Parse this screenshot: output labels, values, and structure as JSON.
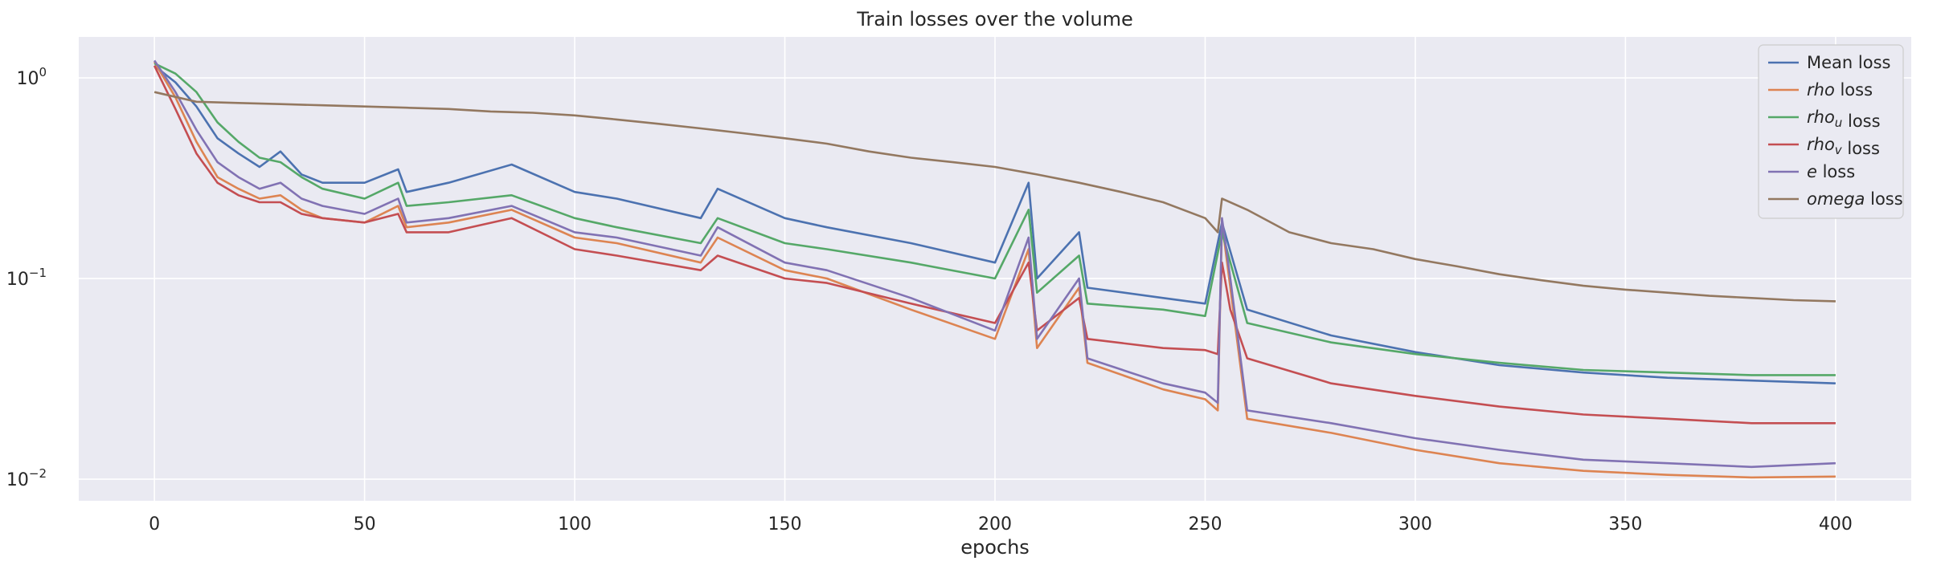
{
  "chart_data": {
    "type": "line",
    "title": "Train losses over the volume",
    "xlabel": "epochs",
    "ylabel": "",
    "yscale": "log",
    "xlim": [
      -18,
      418
    ],
    "ylim": [
      0.0078,
      1.6
    ],
    "x_ticks": [
      0,
      50,
      100,
      150,
      200,
      250,
      300,
      350,
      400
    ],
    "y_ticks": [
      {
        "value": 1,
        "base": "10",
        "exp": "0"
      },
      {
        "value": 0.1,
        "base": "10",
        "exp": "−1"
      },
      {
        "value": 0.01,
        "base": "10",
        "exp": "−2"
      }
    ],
    "grid": true,
    "legend_position": "top-right",
    "series": [
      {
        "name": "Mean loss",
        "label_parts": [
          {
            "t": "Mean loss",
            "i": false
          }
        ],
        "color": "#4c72b0",
        "x": [
          0,
          5,
          10,
          15,
          20,
          25,
          30,
          35,
          40,
          50,
          58,
          60,
          70,
          85,
          100,
          110,
          130,
          134,
          150,
          160,
          180,
          200,
          208,
          210,
          220,
          222,
          240,
          250,
          254,
          260,
          280,
          300,
          320,
          340,
          360,
          380,
          400
        ],
        "values": [
          1.15,
          0.95,
          0.72,
          0.5,
          0.42,
          0.36,
          0.43,
          0.33,
          0.3,
          0.3,
          0.35,
          0.27,
          0.3,
          0.37,
          0.27,
          0.25,
          0.2,
          0.28,
          0.2,
          0.18,
          0.15,
          0.12,
          0.3,
          0.1,
          0.17,
          0.09,
          0.08,
          0.075,
          0.19,
          0.07,
          0.052,
          0.043,
          0.037,
          0.034,
          0.032,
          0.031,
          0.03
        ]
      },
      {
        "name": "rho loss",
        "label_parts": [
          {
            "t": "rho",
            "i": true
          },
          {
            "t": " loss",
            "i": false
          }
        ],
        "color": "#dd8452",
        "x": [
          0,
          5,
          10,
          15,
          20,
          25,
          30,
          35,
          40,
          50,
          58,
          60,
          70,
          85,
          100,
          110,
          130,
          134,
          150,
          160,
          180,
          200,
          208,
          210,
          220,
          222,
          240,
          250,
          253,
          254,
          256,
          260,
          280,
          300,
          320,
          340,
          360,
          380,
          400
        ],
        "values": [
          1.2,
          0.8,
          0.48,
          0.32,
          0.28,
          0.25,
          0.26,
          0.22,
          0.2,
          0.19,
          0.23,
          0.18,
          0.19,
          0.22,
          0.16,
          0.15,
          0.12,
          0.16,
          0.11,
          0.1,
          0.07,
          0.05,
          0.14,
          0.045,
          0.09,
          0.038,
          0.028,
          0.025,
          0.022,
          0.19,
          0.09,
          0.02,
          0.017,
          0.014,
          0.012,
          0.011,
          0.0105,
          0.0102,
          0.0103
        ]
      },
      {
        "name": "rho_u loss",
        "label_parts": [
          {
            "t": "rho",
            "i": true
          },
          {
            "t": "u",
            "i": true,
            "sub": true
          },
          {
            "t": " loss",
            "i": false
          }
        ],
        "color": "#55a868",
        "x": [
          0,
          5,
          10,
          15,
          20,
          25,
          30,
          35,
          40,
          50,
          58,
          60,
          70,
          85,
          100,
          110,
          130,
          134,
          150,
          160,
          180,
          200,
          208,
          210,
          220,
          222,
          240,
          250,
          254,
          260,
          280,
          300,
          320,
          340,
          360,
          380,
          400
        ],
        "values": [
          1.18,
          1.05,
          0.85,
          0.6,
          0.48,
          0.4,
          0.38,
          0.32,
          0.28,
          0.25,
          0.3,
          0.23,
          0.24,
          0.26,
          0.2,
          0.18,
          0.15,
          0.2,
          0.15,
          0.14,
          0.12,
          0.1,
          0.22,
          0.085,
          0.13,
          0.075,
          0.07,
          0.065,
          0.17,
          0.06,
          0.048,
          0.042,
          0.038,
          0.035,
          0.034,
          0.033,
          0.033
        ]
      },
      {
        "name": "rho_v loss",
        "label_parts": [
          {
            "t": "rho",
            "i": true
          },
          {
            "t": "v",
            "i": true,
            "sub": true
          },
          {
            "t": " loss",
            "i": false
          }
        ],
        "color": "#c44e52",
        "x": [
          0,
          5,
          10,
          15,
          20,
          25,
          30,
          35,
          40,
          50,
          58,
          60,
          70,
          85,
          100,
          110,
          130,
          134,
          150,
          160,
          180,
          200,
          208,
          210,
          220,
          222,
          240,
          250,
          253,
          254,
          256,
          260,
          280,
          300,
          320,
          340,
          360,
          380,
          400
        ],
        "values": [
          1.15,
          0.7,
          0.42,
          0.3,
          0.26,
          0.24,
          0.24,
          0.21,
          0.2,
          0.19,
          0.21,
          0.17,
          0.17,
          0.2,
          0.14,
          0.13,
          0.11,
          0.13,
          0.1,
          0.095,
          0.075,
          0.06,
          0.12,
          0.055,
          0.08,
          0.05,
          0.045,
          0.044,
          0.042,
          0.12,
          0.07,
          0.04,
          0.03,
          0.026,
          0.023,
          0.021,
          0.02,
          0.019,
          0.019
        ]
      },
      {
        "name": "e loss",
        "label_parts": [
          {
            "t": "e",
            "i": true
          },
          {
            "t": " loss",
            "i": false
          }
        ],
        "color": "#8172b3",
        "x": [
          0,
          5,
          10,
          15,
          20,
          25,
          30,
          35,
          40,
          50,
          58,
          60,
          70,
          85,
          100,
          110,
          130,
          134,
          150,
          160,
          180,
          200,
          208,
          210,
          220,
          222,
          240,
          250,
          253,
          254,
          256,
          260,
          280,
          300,
          320,
          340,
          360,
          380,
          400
        ],
        "values": [
          1.22,
          0.85,
          0.55,
          0.38,
          0.32,
          0.28,
          0.3,
          0.25,
          0.23,
          0.21,
          0.25,
          0.19,
          0.2,
          0.23,
          0.17,
          0.16,
          0.13,
          0.18,
          0.12,
          0.11,
          0.08,
          0.055,
          0.16,
          0.05,
          0.1,
          0.04,
          0.03,
          0.027,
          0.024,
          0.2,
          0.1,
          0.022,
          0.019,
          0.016,
          0.014,
          0.0125,
          0.012,
          0.0115,
          0.012
        ]
      },
      {
        "name": "omega loss",
        "label_parts": [
          {
            "t": "omega",
            "i": true
          },
          {
            "t": " loss",
            "i": false
          }
        ],
        "color": "#937860",
        "x": [
          0,
          10,
          20,
          30,
          40,
          50,
          60,
          70,
          80,
          90,
          100,
          110,
          120,
          130,
          140,
          150,
          160,
          170,
          180,
          190,
          200,
          210,
          220,
          230,
          240,
          250,
          253,
          254,
          260,
          270,
          280,
          290,
          300,
          310,
          320,
          330,
          340,
          350,
          360,
          370,
          380,
          390,
          400
        ],
        "values": [
          0.85,
          0.76,
          0.75,
          0.74,
          0.73,
          0.72,
          0.71,
          0.7,
          0.68,
          0.67,
          0.65,
          0.62,
          0.59,
          0.56,
          0.53,
          0.5,
          0.47,
          0.43,
          0.4,
          0.38,
          0.36,
          0.33,
          0.3,
          0.27,
          0.24,
          0.2,
          0.17,
          0.25,
          0.22,
          0.17,
          0.15,
          0.14,
          0.125,
          0.115,
          0.105,
          0.098,
          0.092,
          0.088,
          0.085,
          0.082,
          0.08,
          0.078,
          0.077
        ]
      }
    ]
  }
}
